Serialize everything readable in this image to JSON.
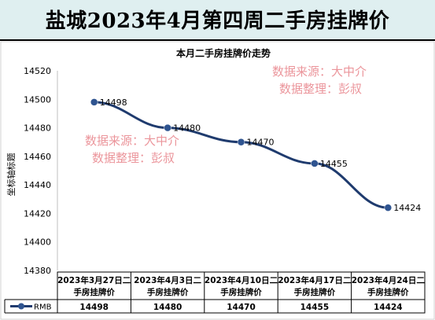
{
  "banner": {
    "title": "盐城2023年4月第四周二手房挂牌价"
  },
  "watermarks": [
    {
      "line1": "数据来源：大中介",
      "line2": "数据整理：彭叔"
    },
    {
      "line1": "数据来源：大中介",
      "line2": "数据整理：彭叔"
    }
  ],
  "chart_data": {
    "type": "line",
    "title": "本月二手房挂牌价走势",
    "ylabel": "坐标轴标题",
    "xlabel": "",
    "categories": [
      [
        "2023年3月27日二",
        "手房挂牌价"
      ],
      [
        "2023年4月3日二",
        "手房挂牌价"
      ],
      [
        "2023年4月10日二",
        "手房挂牌价"
      ],
      [
        "2023年4月17日二",
        "手房挂牌价"
      ],
      [
        "2023年4月24日二",
        "手房挂牌价"
      ]
    ],
    "series": [
      {
        "name": "RMB",
        "values": [
          14498,
          14480,
          14470,
          14455,
          14424
        ]
      }
    ],
    "ylim": [
      14380,
      14520
    ],
    "yticks": [
      14380,
      14400,
      14420,
      14440,
      14460,
      14480,
      14500,
      14520
    ],
    "grid": false,
    "legend": "data-table",
    "colors": {
      "line": "#1f3b6e",
      "marker": "#2f5490"
    }
  }
}
